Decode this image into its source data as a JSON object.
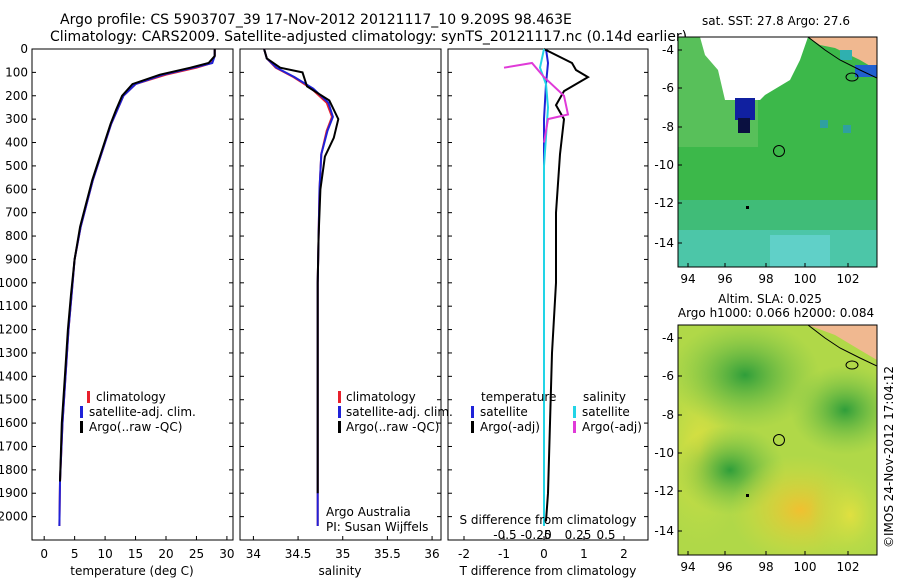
{
  "header": {
    "line1": "Argo profile: CS 5903707_39 17-Nov-2012 20121117_10 9.209S 98.463E",
    "line2": "Climatology: CARS2009. Satellite-adjusted climatology: synTS_20121117.nc (0.14d earlier)"
  },
  "colors": {
    "climatology": "#e8202c",
    "satellite": "#1f22d8",
    "argo": "#000000",
    "sat_s": "#22d4e6",
    "argo_s": "#e03ad8"
  },
  "chart_data": [
    {
      "id": "temperature",
      "type": "line",
      "xlabel": "temperature (deg C)",
      "ylabel": "",
      "xlim": [
        -2,
        31
      ],
      "ylim": [
        0,
        2100
      ],
      "xticks": [
        0,
        5,
        10,
        15,
        20,
        25,
        30
      ],
      "yticks": [
        0,
        100,
        200,
        300,
        400,
        500,
        600,
        700,
        800,
        900,
        1000,
        1100,
        1200,
        1300,
        1400,
        1500,
        1600,
        1700,
        1800,
        1900,
        2000
      ],
      "legend": [
        "climatology",
        "satellite-adj. clim.",
        "Argo(..raw -QC)"
      ],
      "series": [
        {
          "name": "climatology",
          "x": [
            28,
            28,
            27.5,
            25,
            20,
            15,
            13,
            12,
            11,
            10,
            9,
            8,
            7,
            6,
            5,
            4.5,
            4,
            3.5,
            3,
            2.6,
            2.5
          ],
          "y": [
            0,
            30,
            60,
            80,
            110,
            150,
            200,
            260,
            320,
            400,
            480,
            560,
            660,
            760,
            900,
            1050,
            1200,
            1400,
            1600,
            1850,
            2040
          ]
        },
        {
          "name": "satellite-adj. clim.",
          "x": [
            28,
            28,
            27.6,
            24.5,
            19.5,
            15,
            13,
            12,
            11,
            10,
            9,
            8,
            7,
            6,
            5,
            4.5,
            4,
            3.5,
            3,
            2.6,
            2.5
          ],
          "y": [
            0,
            30,
            60,
            80,
            110,
            150,
            200,
            260,
            320,
            400,
            480,
            560,
            660,
            760,
            900,
            1050,
            1200,
            1400,
            1600,
            1850,
            2040
          ]
        },
        {
          "name": "Argo(..raw -QC)",
          "x": [
            28,
            28,
            27,
            24,
            19,
            14.5,
            12.8,
            11.8,
            10.9,
            9.9,
            8.9,
            7.9,
            6.9,
            5.9,
            5,
            4.4,
            3.9,
            3.4,
            2.9,
            2.6
          ],
          "y": [
            0,
            30,
            60,
            80,
            110,
            150,
            200,
            260,
            320,
            400,
            480,
            560,
            660,
            760,
            900,
            1050,
            1200,
            1400,
            1600,
            1850
          ]
        }
      ]
    },
    {
      "id": "salinity",
      "type": "line",
      "xlabel": "salinity",
      "ylabel": "",
      "xlim": [
        33.85,
        36.1
      ],
      "ylim": [
        0,
        2100
      ],
      "xticks": [
        34,
        34.5,
        35,
        35.5,
        36
      ],
      "legend": [
        "climatology",
        "satellite-adj. clim.",
        "Argo(..raw -QC)"
      ],
      "series": [
        {
          "name": "climatology",
          "x": [
            34.12,
            34.15,
            34.25,
            34.45,
            34.65,
            34.82,
            34.88,
            34.82,
            34.76,
            34.74,
            34.73,
            34.72,
            34.72,
            34.72,
            34.72,
            34.72
          ],
          "y": [
            0,
            40,
            80,
            120,
            170,
            230,
            290,
            350,
            450,
            600,
            800,
            1000,
            1300,
            1600,
            1900,
            2040
          ]
        },
        {
          "name": "satellite-adj. clim.",
          "x": [
            34.12,
            34.15,
            34.26,
            34.46,
            34.67,
            34.84,
            34.89,
            34.83,
            34.76,
            34.74,
            34.73,
            34.72,
            34.72,
            34.72,
            34.72,
            34.72
          ],
          "y": [
            0,
            40,
            80,
            120,
            170,
            230,
            290,
            350,
            450,
            600,
            800,
            1000,
            1300,
            1600,
            1900,
            2040
          ]
        },
        {
          "name": "Argo(..raw -QC)",
          "x": [
            34.12,
            34.15,
            34.3,
            34.55,
            34.6,
            34.85,
            34.95,
            34.9,
            34.8,
            34.75,
            34.73,
            34.72,
            34.72,
            34.72,
            34.72,
            34.72
          ],
          "y": [
            0,
            40,
            80,
            100,
            160,
            220,
            300,
            380,
            460,
            600,
            800,
            1000,
            1300,
            1600,
            1850,
            1900
          ]
        }
      ]
    },
    {
      "id": "difference",
      "type": "line",
      "xlabel": "T difference from climatology",
      "ylabel": "",
      "xlim": [
        -2.4,
        2.6
      ],
      "ylim": [
        0,
        2100
      ],
      "xticks": [
        -2,
        -1,
        0,
        1,
        2
      ],
      "s_xticks": [
        "-0.5",
        "-0.25",
        "0",
        "0.25",
        "0.5"
      ],
      "s_label": "S difference from climatology",
      "legend_temperature": "temperature",
      "legend_salinity": "salinity",
      "legend_items": [
        "satellite",
        "Argo(-adj)",
        "satellite",
        "Argo(-adj)"
      ],
      "series": [
        {
          "name": "temperature satellite",
          "x": [
            0.05,
            0.1,
            0.05,
            0,
            0,
            0,
            0
          ],
          "y": [
            0,
            60,
            150,
            300,
            700,
            1200,
            2040
          ]
        },
        {
          "name": "temperature Argo(-adj)",
          "x": [
            0,
            0.7,
            0.8,
            1.1,
            0.5,
            0.3,
            0.5,
            0.4,
            0.3,
            0.3,
            0.2,
            0.15,
            0.1,
            0.05
          ],
          "y": [
            0,
            60,
            90,
            120,
            180,
            240,
            300,
            450,
            700,
            1000,
            1300,
            1600,
            1900,
            2020
          ]
        },
        {
          "name": "salinity satellite",
          "x": [
            0,
            -0.1,
            0.05,
            0.1,
            0,
            0
          ],
          "y": [
            0,
            80,
            150,
            250,
            500,
            2040
          ]
        },
        {
          "name": "salinity Argo(-adj)",
          "x": [
            -1,
            -0.3,
            0,
            0.5,
            0.6,
            0.1,
            0
          ],
          "y": [
            80,
            60,
            120,
            200,
            280,
            300,
            400
          ]
        }
      ]
    }
  ],
  "map_top": {
    "title": "sat. SST: 27.8  Argo: 27.6",
    "xticks": [
      "94",
      "96",
      "98",
      "100",
      "102"
    ],
    "yticks": [
      "-4",
      "-6",
      "-8",
      "-10",
      "-12",
      "-14"
    ]
  },
  "map_bottom": {
    "title1": "Altim. SLA: 0.025",
    "title2": "Argo h1000: 0.066 h2000: 0.084",
    "xticks": [
      "94",
      "96",
      "98",
      "100",
      "102"
    ],
    "yticks": [
      "-4",
      "-6",
      "-8",
      "-10",
      "-12",
      "-14"
    ]
  },
  "annot": {
    "org": "Argo Australia",
    "pi": "PI: Susan Wijffels",
    "footer": "©IMOS 24-Nov-2012 17:04:12"
  }
}
